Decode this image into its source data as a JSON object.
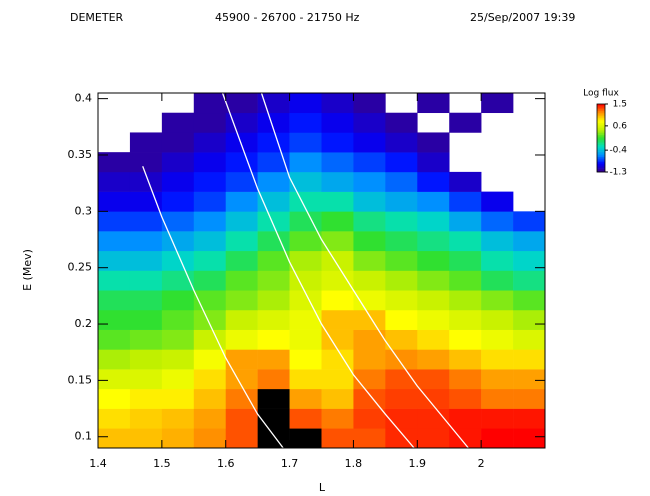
{
  "chart_data": {
    "type": "heatmap",
    "header": [
      "DEMETER",
      "45900 - 26700 - 21750 Hz",
      "25/Sep/2007 19:39"
    ],
    "x_label": "L",
    "y_label": "E (Mev)",
    "xlim": [
      1.4,
      2.1
    ],
    "ylim": [
      0.09,
      0.405
    ],
    "xticks": [
      1.4,
      1.5,
      1.6,
      1.7,
      1.8,
      1.9,
      2.0
    ],
    "yticks": [
      0.1,
      0.15,
      0.2,
      0.25,
      0.3,
      0.35,
      0.4
    ],
    "x_bins": [
      1.4,
      1.45,
      1.5,
      1.55,
      1.6,
      1.65,
      1.7,
      1.75,
      1.8,
      1.85,
      1.9,
      1.95,
      2.0,
      2.05,
      2.1
    ],
    "y_bins": [
      0.09,
      0.1075,
      0.125,
      0.1425,
      0.16,
      0.1775,
      0.195,
      0.2125,
      0.23,
      0.2475,
      0.265,
      0.2825,
      0.3,
      0.3175,
      0.335,
      0.3525,
      0.37,
      0.3875,
      0.405
    ],
    "z": [
      [
        1.0,
        1.0,
        1.05,
        1.15,
        1.3,
        1.7,
        1.6,
        1.3,
        1.3,
        1.4,
        1.4,
        1.45,
        1.5,
        1.5
      ],
      [
        0.9,
        0.95,
        1.0,
        1.1,
        1.3,
        1.7,
        1.3,
        1.2,
        1.35,
        1.4,
        1.4,
        1.45,
        1.45,
        1.45
      ],
      [
        0.8,
        0.85,
        0.85,
        1.0,
        1.2,
        1.6,
        1.1,
        1.0,
        1.3,
        1.35,
        1.35,
        1.3,
        1.2,
        1.2
      ],
      [
        0.6,
        0.6,
        0.7,
        0.9,
        1.1,
        1.2,
        0.9,
        0.9,
        1.2,
        1.3,
        1.3,
        1.2,
        1.1,
        1.1
      ],
      [
        0.4,
        0.45,
        0.5,
        0.75,
        1.1,
        1.1,
        0.8,
        0.9,
        1.1,
        1.15,
        1.1,
        1.0,
        0.9,
        0.9
      ],
      [
        0.2,
        0.25,
        0.3,
        0.5,
        0.7,
        0.8,
        0.7,
        1.0,
        1.1,
        1.0,
        0.9,
        0.8,
        0.7,
        0.6
      ],
      [
        0.1,
        0.1,
        0.2,
        0.3,
        0.5,
        0.6,
        0.7,
        1.0,
        1.0,
        0.8,
        0.7,
        0.6,
        0.5,
        0.4
      ],
      [
        0.0,
        0.0,
        0.1,
        0.2,
        0.3,
        0.4,
        0.6,
        0.8,
        0.7,
        0.6,
        0.5,
        0.4,
        0.3,
        0.2
      ],
      [
        -0.2,
        -0.2,
        -0.1,
        0.0,
        0.2,
        0.3,
        0.5,
        0.6,
        0.5,
        0.4,
        0.3,
        0.2,
        0.0,
        -0.1
      ],
      [
        -0.4,
        -0.4,
        -0.3,
        -0.2,
        0.0,
        0.2,
        0.4,
        0.5,
        0.3,
        0.2,
        0.1,
        0.0,
        -0.2,
        -0.3
      ],
      [
        -0.6,
        -0.6,
        -0.5,
        -0.4,
        -0.2,
        0.0,
        0.2,
        0.3,
        0.1,
        0.0,
        -0.1,
        -0.2,
        -0.4,
        -0.5
      ],
      [
        -0.8,
        -0.8,
        -0.7,
        -0.6,
        -0.4,
        -0.2,
        0.0,
        0.1,
        -0.1,
        -0.2,
        -0.3,
        -0.5,
        -0.7,
        -0.8
      ],
      [
        -1.0,
        -1.0,
        -0.9,
        -0.8,
        -0.6,
        -0.4,
        -0.2,
        -0.2,
        -0.4,
        -0.5,
        -0.6,
        -0.8,
        -1.0,
        null
      ],
      [
        -1.1,
        -1.1,
        -1.0,
        -0.9,
        -0.8,
        -0.6,
        -0.4,
        -0.5,
        -0.6,
        -0.7,
        -0.9,
        -1.1,
        null,
        null
      ],
      [
        -1.2,
        -1.2,
        -1.1,
        -1.0,
        -0.9,
        -0.8,
        -0.6,
        -0.7,
        -0.8,
        -0.9,
        -1.1,
        null,
        null,
        null
      ],
      [
        null,
        -1.2,
        -1.2,
        -1.1,
        -1.0,
        -0.9,
        -0.8,
        -0.9,
        -1.0,
        -1.1,
        -1.2,
        null,
        null,
        null
      ],
      [
        null,
        null,
        -1.2,
        -1.2,
        -1.1,
        -1.0,
        -0.9,
        -1.0,
        -1.1,
        -1.2,
        null,
        -1.2,
        null,
        null
      ],
      [
        null,
        null,
        null,
        -1.2,
        -1.2,
        -1.1,
        -1.0,
        -1.1,
        -1.2,
        null,
        -1.2,
        null,
        -1.2,
        null
      ]
    ],
    "colorbar_title": "Log flux",
    "zlim": [
      -1.3,
      1.5
    ],
    "zticks": [
      1.5,
      0.6,
      -0.4,
      -1.3
    ],
    "colormap": [
      "#3a0080",
      "#0000ff",
      "#0090ff",
      "#00e0c0",
      "#30e030",
      "#c0f000",
      "#ffff00",
      "#ff9000",
      "#ff0000"
    ],
    "over_color": "#000000",
    "curves": [
      {
        "color": "#ffffff",
        "x": [
          1.47,
          1.5,
          1.55,
          1.6,
          1.65,
          1.69
        ],
        "y": [
          0.34,
          0.295,
          0.23,
          0.17,
          0.12,
          0.09
        ]
      },
      {
        "color": "#ffffff",
        "x": [
          1.595,
          1.65,
          1.7,
          1.75,
          1.8,
          1.85,
          1.895
        ],
        "y": [
          0.405,
          0.32,
          0.255,
          0.2,
          0.155,
          0.12,
          0.09
        ]
      },
      {
        "color": "#ffffff",
        "x": [
          1.656,
          1.7,
          1.75,
          1.8,
          1.85,
          1.9,
          1.98
        ],
        "y": [
          0.405,
          0.33,
          0.275,
          0.23,
          0.185,
          0.145,
          0.09
        ]
      }
    ]
  }
}
